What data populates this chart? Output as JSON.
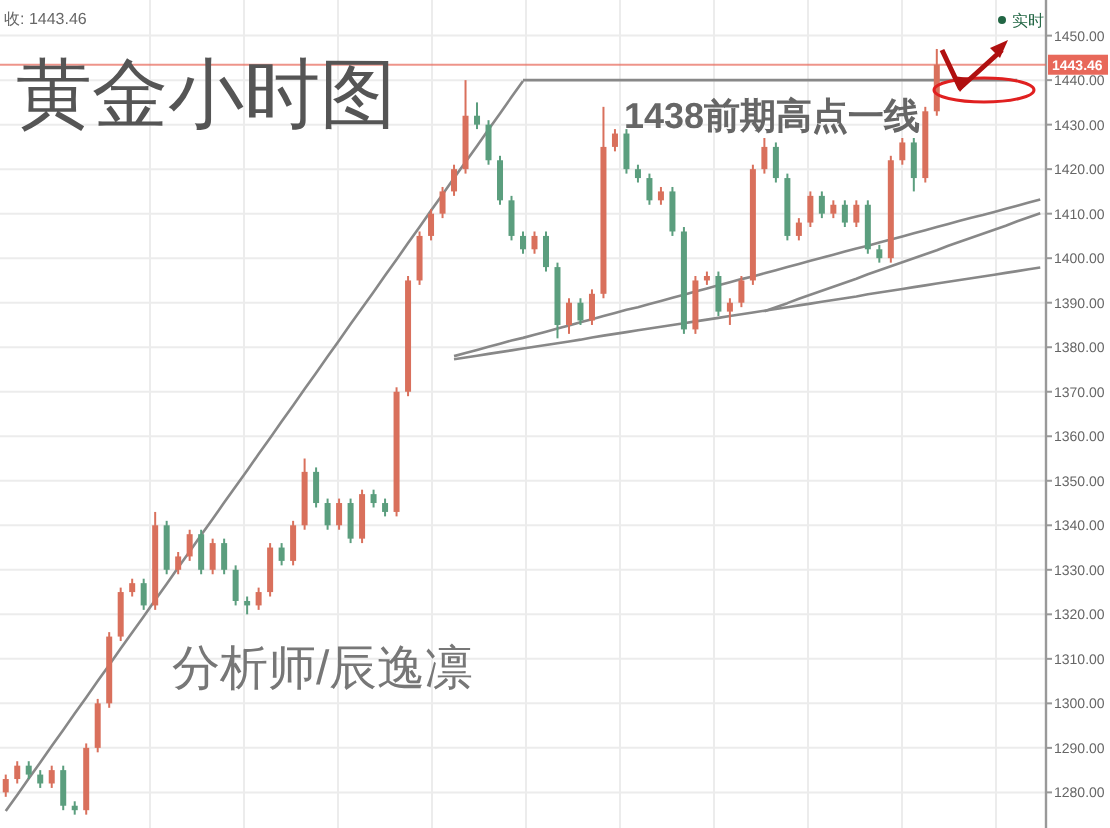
{
  "chart_data": {
    "type": "candlestick",
    "title": "黄金小时图",
    "annotations": [
      "收: 1443.46",
      "1438前期高点一线",
      "分析师/辰逸凛",
      "实时"
    ],
    "ylim": [
      1272,
      1458
    ],
    "yticks": [
      {
        "value": 1280,
        "label": "1280.00"
      },
      {
        "value": 1290,
        "label": "1290.00"
      },
      {
        "value": 1300,
        "label": "1300.00"
      },
      {
        "value": 1310,
        "label": "1310.00"
      },
      {
        "value": 1320,
        "label": "1320.00"
      },
      {
        "value": 1330,
        "label": "1330.00"
      },
      {
        "value": 1340,
        "label": "1340.00"
      },
      {
        "value": 1350,
        "label": "1350.00"
      },
      {
        "value": 1360,
        "label": "1360.00"
      },
      {
        "value": 1370,
        "label": "1370.00"
      },
      {
        "value": 1380,
        "label": "1380.00"
      },
      {
        "value": 1390,
        "label": "1390.00"
      },
      {
        "value": 1400,
        "label": "1400.00"
      },
      {
        "value": 1410,
        "label": "1410.00"
      },
      {
        "value": 1420,
        "label": "1420.00"
      },
      {
        "value": 1430,
        "label": "1430.00"
      },
      {
        "value": 1440,
        "label": "1440.00"
      },
      {
        "value": 1450,
        "label": "1450.00"
      }
    ],
    "tick_labels": "y",
    "grid": true,
    "colors": [
      "#d9705c",
      "#d9705c",
      "#5b9e7e",
      "#5b9e7e",
      "#d9705c",
      "#5b9e7e",
      "#5b9e7e",
      "#d9705c",
      "#d9705c",
      "#d9705c",
      "#d9705c",
      "#d9705c",
      "#5b9e7e",
      "#d9705c",
      "#5b9e7e",
      "#d9705c",
      "#d9705c",
      "#5b9e7e",
      "#d9705c",
      "#5b9e7e",
      "#5b9e7e",
      "#5b9e7e",
      "#d9705c",
      "#d9705c",
      "#5b9e7e",
      "#d9705c",
      "#d9705c",
      "#5b9e7e",
      "#5b9e7e",
      "#d9705c",
      "#5b9e7e",
      "#d9705c",
      "#5b9e7e",
      "#5b9e7e",
      "#d9705c",
      "#d9705c",
      "#d9705c",
      "#d9705c",
      "#d9705c",
      "#d9705c",
      "#d9705c",
      "#5b9e7e",
      "#5b9e7e",
      "#5b9e7e",
      "#5b9e7e",
      "#5b9e7e",
      "#d9705c",
      "#5b9e7e",
      "#5b9e7e",
      "#d9705c",
      "#5b9e7e",
      "#d9705c",
      "#d9705c",
      "#d9705c",
      "#5b9e7e",
      "#5b9e7e",
      "#5b9e7e",
      "#d9705c",
      "#5b9e7e",
      "#5b9e7e",
      "#d9705c",
      "#d9705c",
      "#5b9e7e",
      "#d9705c",
      "#d9705c",
      "#d9705c",
      "#d9705c",
      "#5b9e7e",
      "#5b9e7e",
      "#d9705c",
      "#d9705c",
      "#5b9e7e",
      "#d9705c",
      "#5b9e7e",
      "#d9705c",
      "#5b9e7e",
      "#5b9e7e",
      "#d9705c",
      "#d9705c",
      "#5b9e7e",
      "#d9705c",
      "#d9705c",
      null,
      null,
      null,
      null,
      null,
      null,
      null,
      null,
      null
    ],
    "ref_lines": [
      {
        "axis": "y",
        "value": 1443.46,
        "label": "1443.46",
        "color": "#e8685a"
      }
    ],
    "categories": [
      null,
      null,
      null,
      null,
      null,
      null,
      null,
      null,
      null,
      null,
      null,
      null,
      null,
      null,
      null,
      null,
      null,
      null,
      null,
      null,
      null,
      null,
      null,
      null,
      null,
      null,
      null,
      null,
      null,
      null,
      null,
      null,
      null,
      null,
      null,
      null,
      null,
      null,
      null,
      null,
      null,
      null,
      null,
      null,
      null,
      null,
      null,
      null,
      null,
      null,
      null,
      null,
      null,
      null,
      null,
      null,
      null,
      null,
      null,
      null,
      null,
      null,
      null,
      null,
      null,
      null,
      null,
      null,
      null,
      null,
      null,
      null,
      null,
      null,
      null,
      null,
      null,
      null,
      null,
      null,
      null,
      null,
      null,
      null,
      null,
      null,
      null,
      null,
      null,
      null,
      null
    ],
    "ohlc": [
      [
        1280,
        1284,
        1279,
        1283
      ],
      [
        1283,
        1287,
        1282,
        1286
      ],
      [
        1286,
        1287,
        1283,
        1284
      ],
      [
        1284,
        1285,
        1281,
        1282
      ],
      [
        1282,
        1286,
        1281,
        1285
      ],
      [
        1285,
        1286,
        1276,
        1277
      ],
      [
        1277,
        1278,
        1275,
        1276
      ],
      [
        1276,
        1291,
        1275,
        1290
      ],
      [
        1290,
        1301,
        1289,
        1300
      ],
      [
        1300,
        1316,
        1299,
        1315
      ],
      [
        1315,
        1326,
        1314,
        1325
      ],
      [
        1325,
        1328,
        1324,
        1327
      ],
      [
        1327,
        1328,
        1321,
        1322
      ],
      [
        1322,
        1343,
        1321,
        1340
      ],
      [
        1340,
        1341,
        1329,
        1330
      ],
      [
        1330,
        1334,
        1329,
        1333
      ],
      [
        1333,
        1339,
        1332,
        1338
      ],
      [
        1338,
        1339,
        1329,
        1330
      ],
      [
        1330,
        1337,
        1329,
        1336
      ],
      [
        1336,
        1337,
        1329,
        1330
      ],
      [
        1330,
        1331,
        1322,
        1323
      ],
      [
        1323,
        1324,
        1320,
        1322
      ],
      [
        1322,
        1326,
        1321,
        1325
      ],
      [
        1325,
        1336,
        1324,
        1335
      ],
      [
        1335,
        1336,
        1331,
        1332
      ],
      [
        1332,
        1341,
        1331,
        1340
      ],
      [
        1340,
        1355,
        1339,
        1352
      ],
      [
        1352,
        1353,
        1344,
        1345
      ],
      [
        1345,
        1346,
        1339,
        1340
      ],
      [
        1340,
        1346,
        1339,
        1345
      ],
      [
        1345,
        1346,
        1336,
        1337
      ],
      [
        1337,
        1348,
        1336,
        1347
      ],
      [
        1347,
        1348,
        1344,
        1345
      ],
      [
        1345,
        1346,
        1342,
        1343
      ],
      [
        1343,
        1371,
        1342,
        1370
      ],
      [
        1370,
        1396,
        1369,
        1395
      ],
      [
        1395,
        1406,
        1394,
        1405
      ],
      [
        1405,
        1411,
        1404,
        1410
      ],
      [
        1410,
        1416,
        1409,
        1415
      ],
      [
        1415,
        1421,
        1414,
        1420
      ],
      [
        1420,
        1440,
        1419,
        1432
      ],
      [
        1432,
        1435,
        1429,
        1430
      ],
      [
        1430,
        1431,
        1421,
        1422
      ],
      [
        1422,
        1423,
        1412,
        1413
      ],
      [
        1413,
        1414,
        1404,
        1405
      ],
      [
        1405,
        1406,
        1401,
        1402
      ],
      [
        1402,
        1406,
        1401,
        1405
      ],
      [
        1405,
        1406,
        1397,
        1398
      ],
      [
        1398,
        1399,
        1382,
        1385
      ],
      [
        1385,
        1391,
        1383,
        1390
      ],
      [
        1390,
        1391,
        1385,
        1386
      ],
      [
        1386,
        1393,
        1385,
        1392
      ],
      [
        1392,
        1434,
        1391,
        1425
      ],
      [
        1425,
        1429,
        1424,
        1428
      ],
      [
        1428,
        1429,
        1419,
        1420
      ],
      [
        1420,
        1421,
        1417,
        1418
      ],
      [
        1418,
        1419,
        1412,
        1413
      ],
      [
        1413,
        1416,
        1412,
        1415
      ],
      [
        1415,
        1416,
        1405,
        1406
      ],
      [
        1406,
        1407,
        1383,
        1384
      ],
      [
        1384,
        1396,
        1383,
        1395
      ],
      [
        1395,
        1397,
        1394,
        1396
      ],
      [
        1396,
        1397,
        1387,
        1388
      ],
      [
        1388,
        1391,
        1385,
        1390
      ],
      [
        1390,
        1396,
        1389,
        1395
      ],
      [
        1395,
        1421,
        1394,
        1420
      ],
      [
        1420,
        1427,
        1419,
        1425
      ],
      [
        1425,
        1426,
        1417,
        1418
      ],
      [
        1418,
        1419,
        1404,
        1405
      ],
      [
        1405,
        1409,
        1404,
        1408
      ],
      [
        1408,
        1415,
        1407,
        1414
      ],
      [
        1414,
        1415,
        1409,
        1410
      ],
      [
        1410,
        1413,
        1409,
        1412
      ],
      [
        1412,
        1413,
        1407,
        1408
      ],
      [
        1408,
        1413,
        1407,
        1412
      ],
      [
        1412,
        1413,
        1401,
        1402
      ],
      [
        1402,
        1403,
        1399,
        1400
      ],
      [
        1400,
        1423,
        1399,
        1422
      ],
      [
        1422,
        1427,
        1421,
        1426
      ],
      [
        1426,
        1427,
        1415,
        1418
      ],
      [
        1418,
        1434,
        1417,
        1433
      ],
      [
        1433,
        1447,
        1432,
        1443.46
      ],
      null,
      null,
      null,
      null,
      null,
      null,
      null,
      null,
      null
    ],
    "series": [
      {
        "type": "line",
        "color": "#888888",
        "values": [
          1275.8,
          1279.4,
          1283.1,
          1286.7,
          1290.4,
          1294.0,
          1297.7,
          1301.3,
          1305.0,
          1308.6,
          1312.3,
          1315.9,
          1319.5,
          1323.2,
          1326.8,
          1330.5,
          1334.1,
          1337.8,
          1341.4,
          1345.1,
          1348.7,
          1352.3,
          1356.0,
          1359.6,
          1363.3,
          1366.9,
          1370.6,
          1374.2,
          1377.9,
          1381.5,
          1385.2,
          1388.8,
          1392.4,
          1396.1,
          1399.7,
          1403.4,
          1407.0,
          1410.7,
          1414.3,
          1418.0,
          1421.6,
          1425.2,
          1428.9,
          1432.5,
          1436.2,
          1439.8,
          null,
          null,
          null,
          null,
          null,
          null,
          null,
          null,
          null,
          null,
          null,
          null,
          null,
          null,
          null,
          null,
          null,
          null,
          null,
          null,
          null,
          null,
          null,
          null,
          null,
          null,
          null,
          null,
          null,
          null,
          null,
          null,
          null,
          null,
          null,
          null,
          null,
          null,
          null,
          null,
          null,
          null,
          null,
          null,
          null
        ]
      },
      {
        "type": "line",
        "color": "#888888",
        "values": [
          null,
          null,
          null,
          null,
          null,
          null,
          null,
          null,
          null,
          null,
          null,
          null,
          null,
          null,
          null,
          null,
          null,
          null,
          null,
          null,
          null,
          null,
          null,
          null,
          null,
          null,
          null,
          null,
          null,
          null,
          null,
          null,
          null,
          null,
          null,
          null,
          null,
          null,
          null,
          null,
          null,
          null,
          null,
          null,
          null,
          1440,
          1440,
          1440,
          1440,
          1440,
          1440,
          1440,
          1440,
          1440,
          1440,
          1440,
          1440,
          1440,
          1440,
          1440,
          1440,
          1440,
          1440,
          1440,
          1440,
          1440,
          1440,
          1440,
          1440,
          1440,
          1440,
          1440,
          1440,
          1440,
          1440,
          1440,
          1440,
          1440,
          1440,
          1440,
          1440,
          1440,
          1440,
          1440,
          1440,
          1440,
          1440,
          1440,
          1440,
          null,
          null
        ]
      },
      {
        "type": "line",
        "color": "#888888",
        "values": [
          null,
          null,
          null,
          null,
          null,
          null,
          null,
          null,
          null,
          null,
          null,
          null,
          null,
          null,
          null,
          null,
          null,
          null,
          null,
          null,
          null,
          null,
          null,
          null,
          null,
          null,
          null,
          null,
          null,
          null,
          null,
          null,
          null,
          null,
          null,
          null,
          null,
          null,
          null,
          1378.0,
          1378.7,
          1379.4,
          1380.1,
          1380.8,
          1381.5,
          1382.1,
          1382.8,
          1383.5,
          1384.2,
          1384.9,
          1385.6,
          1386.3,
          1387.0,
          1387.7,
          1388.4,
          1389.0,
          1389.7,
          1390.4,
          1391.1,
          1391.8,
          1392.5,
          1393.2,
          1393.9,
          1394.6,
          1395.3,
          1395.9,
          1396.6,
          1397.3,
          1398.0,
          1398.7,
          1399.4,
          1400.1,
          1400.8,
          1401.5,
          1402.2,
          1402.8,
          1403.5,
          1404.2,
          1404.9,
          1405.6,
          1406.3,
          1407.0,
          1407.7,
          1408.4,
          1409.1,
          1409.7,
          1410.4,
          1411.1,
          1411.8,
          1412.5,
          1413.2
        ]
      },
      {
        "type": "line",
        "color": "#888888",
        "values": [
          null,
          null,
          null,
          null,
          null,
          null,
          null,
          null,
          null,
          null,
          null,
          null,
          null,
          null,
          null,
          null,
          null,
          null,
          null,
          null,
          null,
          null,
          null,
          null,
          null,
          null,
          null,
          null,
          null,
          null,
          null,
          null,
          null,
          null,
          null,
          null,
          null,
          null,
          null,
          1377.3,
          1377.7,
          1378.1,
          1378.5,
          1378.9,
          1379.3,
          1379.7,
          1380.1,
          1380.5,
          1380.9,
          1381.3,
          1381.7,
          1382.2,
          1382.6,
          1383.0,
          1383.4,
          1383.8,
          1384.2,
          1384.6,
          1385.0,
          1385.4,
          1385.8,
          1386.2,
          1386.6,
          1387.0,
          1387.4,
          1387.8,
          1388.2,
          1388.6,
          1389.0,
          1389.4,
          1389.8,
          1390.2,
          1390.6,
          1391.0,
          1391.4,
          1391.9,
          1392.3,
          1392.7,
          1393.1,
          1393.5,
          1393.9,
          1394.3,
          1394.7,
          1395.1,
          1395.5,
          1395.9,
          1396.3,
          1396.7,
          1397.1,
          1397.5,
          1397.9
        ]
      },
      {
        "type": "line",
        "color": "#888888",
        "values": [
          null,
          null,
          null,
          null,
          null,
          null,
          null,
          null,
          null,
          null,
          null,
          null,
          null,
          null,
          null,
          null,
          null,
          null,
          null,
          null,
          null,
          null,
          null,
          null,
          null,
          null,
          null,
          null,
          null,
          null,
          null,
          null,
          null,
          null,
          null,
          null,
          null,
          null,
          null,
          null,
          null,
          null,
          null,
          null,
          null,
          null,
          null,
          null,
          null,
          null,
          null,
          null,
          null,
          null,
          null,
          null,
          null,
          null,
          null,
          null,
          null,
          null,
          null,
          null,
          null,
          null,
          1388.1,
          1389.0,
          1389.9,
          1390.9,
          1391.8,
          1392.7,
          1393.6,
          1394.5,
          1395.4,
          1396.4,
          1397.3,
          1398.2,
          1399.1,
          1400.0,
          1400.9,
          1401.8,
          1402.8,
          1403.7,
          1404.6,
          1405.5,
          1406.4,
          1407.3,
          1408.3,
          1409.2,
          1410.1
        ]
      }
    ]
  }
}
